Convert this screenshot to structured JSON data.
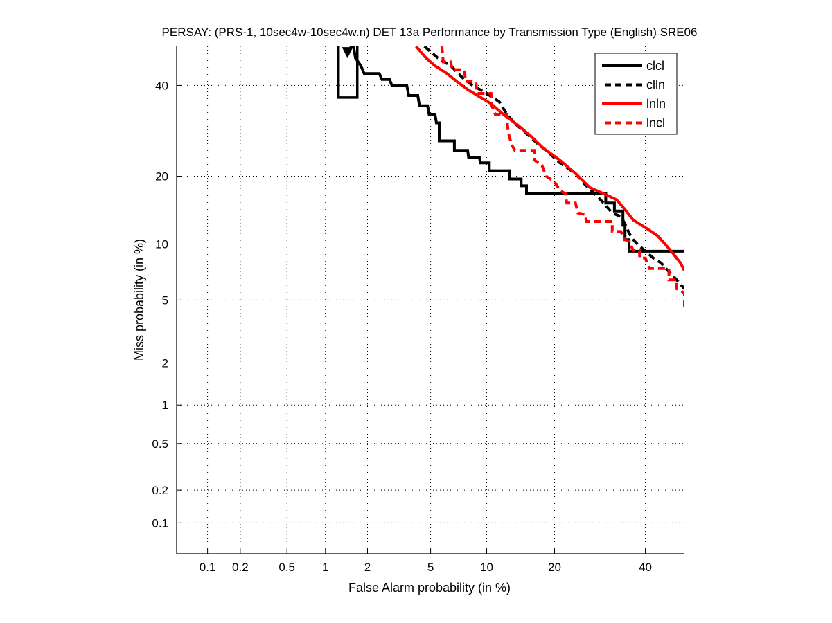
{
  "chart_data": {
    "type": "line",
    "title": "PERSAY: (PRS-1, 10sec4w-10sec4w.n) DET 13a Performance by Transmission Type (English) SRE06",
    "xlabel": "False Alarm probability (in %)",
    "ylabel": "Miss probability (in %)",
    "xscale": "normal-deviate",
    "yscale": "normal-deviate",
    "xlim": [
      0.05,
      50
    ],
    "ylim": [
      0.05,
      50
    ],
    "grid": true,
    "legend_position": "top-right",
    "xticks": [
      0.1,
      0.2,
      0.5,
      1,
      2,
      5,
      10,
      20,
      40
    ],
    "xtick_labels": [
      "0.1",
      "0.2",
      "0.5",
      "1",
      "2",
      "5",
      "10",
      "20",
      "40"
    ],
    "yticks": [
      0.1,
      0.2,
      0.5,
      1,
      2,
      5,
      10,
      20,
      40
    ],
    "ytick_labels": [
      "0.1",
      "0.2",
      "0.5",
      "1",
      "2",
      "5",
      "10",
      "20",
      "40"
    ],
    "series": [
      {
        "name": "clcl",
        "color": "#000000",
        "style": "solid",
        "points": [
          [
            1.5,
            50
          ],
          [
            1.6,
            50
          ],
          [
            1.65,
            47
          ],
          [
            1.8,
            45
          ],
          [
            1.9,
            43
          ],
          [
            2.4,
            43
          ],
          [
            2.5,
            41.5
          ],
          [
            2.8,
            41.5
          ],
          [
            2.9,
            40
          ],
          [
            3.6,
            40
          ],
          [
            3.7,
            37.5
          ],
          [
            4.2,
            37.5
          ],
          [
            4.3,
            35
          ],
          [
            4.8,
            35
          ],
          [
            4.9,
            33
          ],
          [
            5.3,
            33
          ],
          [
            5.4,
            31
          ],
          [
            5.6,
            31
          ],
          [
            5.6,
            27
          ],
          [
            6.8,
            27
          ],
          [
            6.8,
            25
          ],
          [
            8.0,
            25
          ],
          [
            8.1,
            23.5
          ],
          [
            9.2,
            23.5
          ],
          [
            9.3,
            22.5
          ],
          [
            10.3,
            22.5
          ],
          [
            10.3,
            21
          ],
          [
            12.8,
            21
          ],
          [
            12.8,
            19.5
          ],
          [
            14.5,
            19.5
          ],
          [
            14.5,
            18.3
          ],
          [
            15.3,
            18.3
          ],
          [
            15.3,
            17
          ],
          [
            30.5,
            17
          ],
          [
            30.5,
            15.5
          ],
          [
            32.5,
            15.5
          ],
          [
            32.5,
            14.3
          ],
          [
            34.5,
            14.3
          ],
          [
            34.5,
            12.3
          ],
          [
            35,
            12.3
          ],
          [
            35,
            10.5
          ],
          [
            36,
            10.5
          ],
          [
            36,
            9.2
          ],
          [
            50,
            9.2
          ]
        ]
      },
      {
        "name": "clln",
        "color": "#000000",
        "style": "dashed",
        "points": [
          [
            4.6,
            50
          ],
          [
            5.5,
            47
          ],
          [
            6.5,
            45
          ],
          [
            7.5,
            42
          ],
          [
            8.5,
            40
          ],
          [
            10,
            38
          ],
          [
            11.5,
            36
          ],
          [
            12.5,
            33
          ],
          [
            13.5,
            31
          ],
          [
            15,
            29
          ],
          [
            17,
            26.5
          ],
          [
            19,
            24.5
          ],
          [
            21,
            22.5
          ],
          [
            24,
            20.5
          ],
          [
            26,
            18.5
          ],
          [
            28,
            17
          ],
          [
            30,
            15.5
          ],
          [
            32,
            14
          ],
          [
            34,
            13.5
          ],
          [
            35,
            12.5
          ],
          [
            36,
            11.3
          ],
          [
            37,
            10.5
          ],
          [
            38,
            10
          ],
          [
            40,
            9.2
          ],
          [
            42,
            8.5
          ],
          [
            44,
            8
          ],
          [
            46,
            7.2
          ],
          [
            48,
            6.5
          ],
          [
            50,
            5.8
          ]
        ]
      },
      {
        "name": "lnln",
        "color": "#ff0000",
        "style": "solid",
        "points": [
          [
            4.1,
            50
          ],
          [
            4.7,
            47
          ],
          [
            5.3,
            45
          ],
          [
            6.2,
            43
          ],
          [
            7.0,
            41
          ],
          [
            8,
            39
          ],
          [
            9,
            37.5
          ],
          [
            10.5,
            35.5
          ],
          [
            12,
            33
          ],
          [
            14,
            30.5
          ],
          [
            16,
            28
          ],
          [
            18,
            25.5
          ],
          [
            21,
            23
          ],
          [
            24,
            20.5
          ],
          [
            27,
            18
          ],
          [
            30,
            17
          ],
          [
            33,
            16
          ],
          [
            35,
            14.5
          ],
          [
            37,
            13
          ],
          [
            40,
            12
          ],
          [
            43,
            11
          ],
          [
            45,
            10
          ],
          [
            47,
            9
          ],
          [
            49,
            8
          ],
          [
            50,
            7.3
          ]
        ]
      },
      {
        "name": "lncl",
        "color": "#ff0000",
        "style": "dashed",
        "points": [
          [
            5.8,
            50
          ],
          [
            5.9,
            46
          ],
          [
            6.5,
            46
          ],
          [
            6.6,
            44
          ],
          [
            7.7,
            44
          ],
          [
            7.8,
            41
          ],
          [
            8.8,
            41
          ],
          [
            9.0,
            38
          ],
          [
            10.5,
            38
          ],
          [
            10.6,
            35
          ],
          [
            11.0,
            33
          ],
          [
            12.5,
            33
          ],
          [
            12.6,
            30
          ],
          [
            12.8,
            28
          ],
          [
            13.2,
            26
          ],
          [
            13.6,
            25
          ],
          [
            16.5,
            25
          ],
          [
            16.6,
            23
          ],
          [
            17.8,
            22
          ],
          [
            18.5,
            20
          ],
          [
            20,
            19
          ],
          [
            21,
            17.5
          ],
          [
            22,
            17
          ],
          [
            22.3,
            15.5
          ],
          [
            24,
            15.5
          ],
          [
            24.5,
            14
          ],
          [
            26,
            13.8
          ],
          [
            26.3,
            12.8
          ],
          [
            32,
            12.8
          ],
          [
            32,
            11.5
          ],
          [
            34,
            11.5
          ],
          [
            35,
            10.5
          ],
          [
            36,
            10.3
          ],
          [
            37,
            9.3
          ],
          [
            38.5,
            9.3
          ],
          [
            38.6,
            8.5
          ],
          [
            40,
            8.5
          ],
          [
            41,
            7.5
          ],
          [
            46,
            7.5
          ],
          [
            46,
            6.5
          ],
          [
            48,
            6.5
          ],
          [
            48,
            5.8
          ],
          [
            50,
            5.5
          ],
          [
            50,
            4.3
          ]
        ]
      }
    ],
    "annotations": [
      {
        "type": "rectangle",
        "series": "clcl",
        "x_range": [
          1.25,
          1.7
        ],
        "y_range": [
          37,
          50
        ],
        "label": ""
      },
      {
        "type": "triangle-marker",
        "series": "clcl",
        "x": 1.45,
        "y": 48
      }
    ]
  }
}
